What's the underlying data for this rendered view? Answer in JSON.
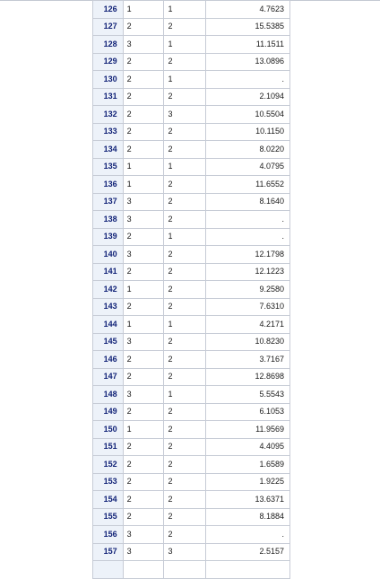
{
  "table": {
    "rows": [
      {
        "obs": "126",
        "c1": "1",
        "c2": "1",
        "c3": "4.7623"
      },
      {
        "obs": "127",
        "c1": "2",
        "c2": "2",
        "c3": "15.5385"
      },
      {
        "obs": "128",
        "c1": "3",
        "c2": "1",
        "c3": "11.1511"
      },
      {
        "obs": "129",
        "c1": "2",
        "c2": "2",
        "c3": "13.0896"
      },
      {
        "obs": "130",
        "c1": "2",
        "c2": "1",
        "c3": "."
      },
      {
        "obs": "131",
        "c1": "2",
        "c2": "2",
        "c3": "2.1094"
      },
      {
        "obs": "132",
        "c1": "2",
        "c2": "3",
        "c3": "10.5504"
      },
      {
        "obs": "133",
        "c1": "2",
        "c2": "2",
        "c3": "10.1150"
      },
      {
        "obs": "134",
        "c1": "2",
        "c2": "2",
        "c3": "8.0220"
      },
      {
        "obs": "135",
        "c1": "1",
        "c2": "1",
        "c3": "4.0795"
      },
      {
        "obs": "136",
        "c1": "1",
        "c2": "2",
        "c3": "11.6552"
      },
      {
        "obs": "137",
        "c1": "3",
        "c2": "2",
        "c3": "8.1640"
      },
      {
        "obs": "138",
        "c1": "3",
        "c2": "2",
        "c3": "."
      },
      {
        "obs": "139",
        "c1": "2",
        "c2": "1",
        "c3": "."
      },
      {
        "obs": "140",
        "c1": "3",
        "c2": "2",
        "c3": "12.1798"
      },
      {
        "obs": "141",
        "c1": "2",
        "c2": "2",
        "c3": "12.1223"
      },
      {
        "obs": "142",
        "c1": "1",
        "c2": "2",
        "c3": "9.2580"
      },
      {
        "obs": "143",
        "c1": "2",
        "c2": "2",
        "c3": "7.6310"
      },
      {
        "obs": "144",
        "c1": "1",
        "c2": "1",
        "c3": "4.2171"
      },
      {
        "obs": "145",
        "c1": "3",
        "c2": "2",
        "c3": "10.8230"
      },
      {
        "obs": "146",
        "c1": "2",
        "c2": "2",
        "c3": "3.7167"
      },
      {
        "obs": "147",
        "c1": "2",
        "c2": "2",
        "c3": "12.8698"
      },
      {
        "obs": "148",
        "c1": "3",
        "c2": "1",
        "c3": "5.5543"
      },
      {
        "obs": "149",
        "c1": "2",
        "c2": "2",
        "c3": "6.1053"
      },
      {
        "obs": "150",
        "c1": "1",
        "c2": "2",
        "c3": "11.9569"
      },
      {
        "obs": "151",
        "c1": "2",
        "c2": "2",
        "c3": "4.4095"
      },
      {
        "obs": "152",
        "c1": "2",
        "c2": "2",
        "c3": "1.6589"
      },
      {
        "obs": "153",
        "c1": "2",
        "c2": "2",
        "c3": "1.9225"
      },
      {
        "obs": "154",
        "c1": "2",
        "c2": "2",
        "c3": "13.6371"
      },
      {
        "obs": "155",
        "c1": "2",
        "c2": "2",
        "c3": "8.1884"
      },
      {
        "obs": "156",
        "c1": "3",
        "c2": "2",
        "c3": "."
      },
      {
        "obs": "157",
        "c1": "3",
        "c2": "3",
        "c3": "2.5157"
      },
      {
        "obs": "",
        "c1": "",
        "c2": "",
        "c3": ""
      }
    ]
  }
}
